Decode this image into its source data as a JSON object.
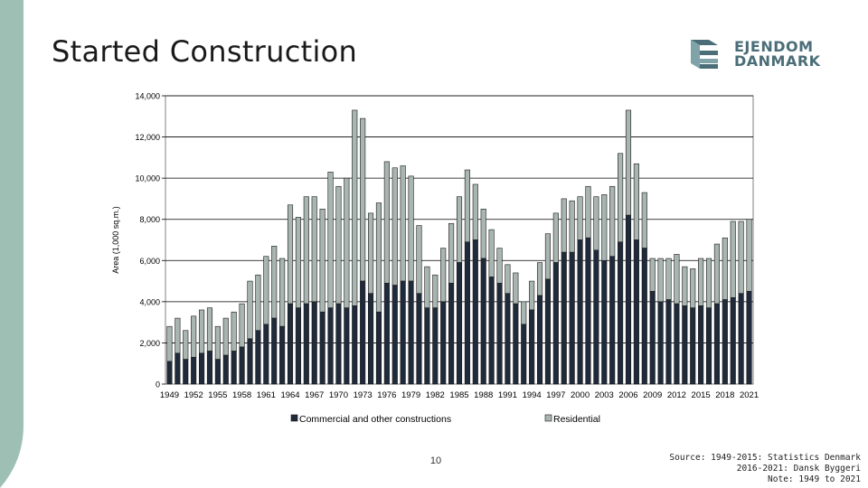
{
  "slide": {
    "title": "Started Construction",
    "page_number": "10",
    "source_lines": [
      "Source: 1949-2015: Statistics Denmark",
      "2016-2021: Dansk Byggeri",
      "Note: 1949 to 2021"
    ]
  },
  "logo": {
    "line1": "EJENDOM",
    "line2": "DANMARK",
    "color": "#4a6d77"
  },
  "colors": {
    "sidebar": "#9dbfb4",
    "commercial": "#1f2a3a",
    "residential": "#a9b5b1",
    "grid": "#000000"
  },
  "chart_data": {
    "type": "bar",
    "stacked": true,
    "ylabel": "Area (1,000 sq.m.)",
    "ylim": [
      0,
      14000
    ],
    "yticks": [
      "0",
      "2,000",
      "4,000",
      "6,000",
      "8,000",
      "10,000",
      "12,000",
      "14,000"
    ],
    "grid": true,
    "legend_position": "bottom",
    "x_tick_labels": [
      "1949",
      "1952",
      "1955",
      "1958",
      "1961",
      "1964",
      "1967",
      "1970",
      "1973",
      "1976",
      "1979",
      "1982",
      "1985",
      "1988",
      "1991",
      "1994",
      "1997",
      "2000",
      "2003",
      "2006",
      "2009",
      "2012",
      "2015",
      "2018",
      "2021"
    ],
    "categories": [
      1949,
      1950,
      1951,
      1952,
      1953,
      1954,
      1955,
      1956,
      1957,
      1958,
      1959,
      1960,
      1961,
      1962,
      1963,
      1964,
      1965,
      1966,
      1967,
      1968,
      1969,
      1970,
      1971,
      1972,
      1973,
      1974,
      1975,
      1976,
      1977,
      1978,
      1979,
      1980,
      1981,
      1982,
      1983,
      1984,
      1985,
      1986,
      1987,
      1988,
      1989,
      1990,
      1991,
      1992,
      1993,
      1994,
      1995,
      1996,
      1997,
      1998,
      1999,
      2000,
      2001,
      2002,
      2003,
      2004,
      2005,
      2006,
      2007,
      2008,
      2009,
      2010,
      2011,
      2012,
      2013,
      2014,
      2015,
      2016,
      2017,
      2018,
      2019,
      2020,
      2021
    ],
    "series": [
      {
        "name": "Commercial and other constructions",
        "values": [
          1100,
          1500,
          1200,
          1300,
          1500,
          1600,
          1200,
          1400,
          1600,
          1800,
          2200,
          2600,
          2900,
          3200,
          2800,
          3900,
          3700,
          3900,
          4000,
          3500,
          3700,
          3900,
          3700,
          3800,
          5000,
          4400,
          3500,
          4900,
          4800,
          5000,
          5000,
          4400,
          3700,
          3700,
          4000,
          4900,
          5900,
          6900,
          7000,
          6100,
          5200,
          4900,
          4400,
          3900,
          2900,
          3600,
          4300,
          5100,
          5900,
          6400,
          6400,
          7000,
          7100,
          6500,
          6000,
          6200,
          6900,
          8200,
          7000,
          6600,
          4500,
          4000,
          4100,
          3900,
          3800,
          3700,
          3800,
          3700,
          3900,
          4100,
          4200,
          4400,
          4500
        ]
      },
      {
        "name": "Residential",
        "values": [
          1700,
          1700,
          1400,
          2000,
          2100,
          2100,
          1600,
          1800,
          1900,
          2100,
          2800,
          2700,
          3300,
          3500,
          3300,
          4800,
          4400,
          5200,
          5100,
          5000,
          6600,
          5700,
          6300,
          9500,
          7900,
          3900,
          5300,
          5900,
          5700,
          5600,
          5100,
          3300,
          2000,
          1600,
          2600,
          2900,
          3200,
          3500,
          2700,
          2400,
          2300,
          1700,
          1400,
          1500,
          1100,
          1400,
          1600,
          2200,
          2400,
          2600,
          2500,
          2100,
          2500,
          2600,
          3200,
          3400,
          4300,
          5100,
          3700,
          2700,
          1600,
          2100,
          2000,
          2400,
          1900,
          1900,
          2300,
          2400,
          2900,
          3000,
          3700,
          3500,
          3500
        ]
      }
    ]
  }
}
